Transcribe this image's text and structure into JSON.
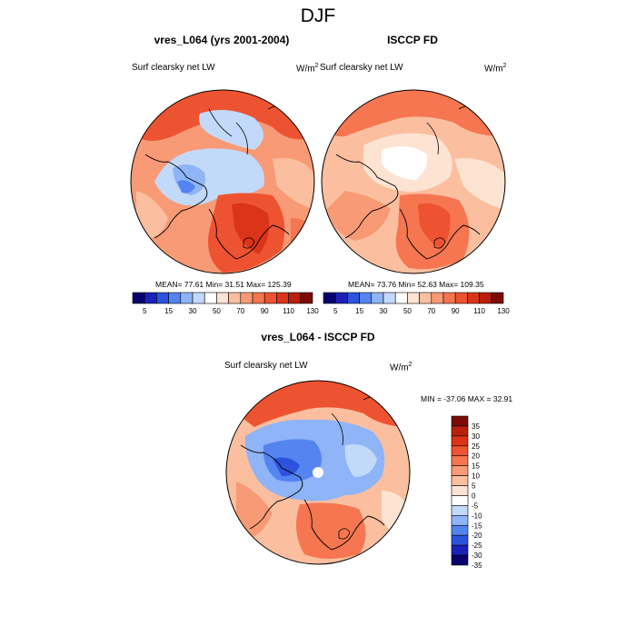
{
  "title": "DJF",
  "panels": [
    {
      "title": "vres_L064 (yrs 2001-2004)",
      "variable": "Surf clearsky net LW",
      "units": "W/m",
      "units_exp": "2",
      "stats": "MEAN=  77.61  Min=  31.51  Max= 125.39"
    },
    {
      "title": "ISCCP FD",
      "variable": "Surf clearsky net LW",
      "units": "W/m",
      "units_exp": "2",
      "stats": "MEAN=  73.76  Min=  52.63  Max= 109.35"
    },
    {
      "title": "vres_L064 - ISCCP FD",
      "variable": "Surf clearsky net LW",
      "units": "W/m",
      "units_exp": "2",
      "stats": "MIN = -37.06 MAX =  32.91"
    }
  ],
  "colorbar_abs": {
    "labels": [
      "5",
      "15",
      "30",
      "50",
      "70",
      "90",
      "110",
      "130"
    ],
    "colors": [
      "#08006e",
      "#1b21b8",
      "#2c52de",
      "#5484f0",
      "#8fb4f7",
      "#c3d9fa",
      "#ffffff",
      "#fde3d2",
      "#fbbfa0",
      "#f89a75",
      "#f57650",
      "#ee5331",
      "#db3418",
      "#b81f0c",
      "#7c0a05"
    ]
  },
  "colorbar_diff": {
    "labels": [
      "35",
      "30",
      "25",
      "20",
      "15",
      "10",
      "5",
      "0",
      "-5",
      "-10",
      "-15",
      "-20",
      "-25",
      "-30",
      "-35"
    ],
    "colors": [
      "#7c0a05",
      "#b81f0c",
      "#db3418",
      "#ee5331",
      "#f57650",
      "#f89a75",
      "#fbbfa0",
      "#fde3d2",
      "#ffffff",
      "#c3d9fa",
      "#8fb4f7",
      "#5484f0",
      "#2c52de",
      "#1b21b8",
      "#08006e"
    ]
  }
}
